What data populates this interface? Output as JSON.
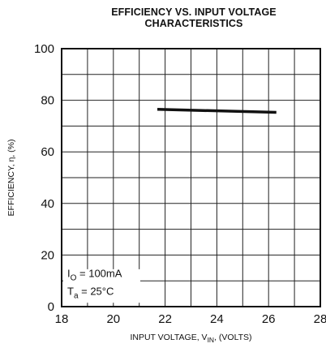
{
  "chart_data": {
    "type": "line",
    "title": "EFFICIENCY VS. INPUT VOLTAGE",
    "subtitle": "CHARACTERISTICS",
    "xlabel": "INPUT VOLTAGE, V_IN, (VOLTS)",
    "xlabel_parts": {
      "pre": "INPUT VOLTAGE, V",
      "sub": "IN",
      "post": ", (VOLTS)"
    },
    "ylabel": "EFFICIENCY, η, (%)",
    "xlim": [
      18,
      28
    ],
    "ylim": [
      0,
      100
    ],
    "x_ticks": [
      "18",
      "20",
      "22",
      "24",
      "26",
      "28"
    ],
    "y_ticks": [
      "0",
      "20",
      "40",
      "60",
      "80",
      "100"
    ],
    "grid": true,
    "series": [
      {
        "x": [
          21.7,
          26.3
        ],
        "y": [
          76.5,
          75.3
        ]
      }
    ],
    "annotations": [
      {
        "main": "I",
        "sub": "O",
        "rest": " = 100mA"
      },
      {
        "main": "T",
        "sub": "a",
        "rest": " = 25°C"
      }
    ]
  }
}
